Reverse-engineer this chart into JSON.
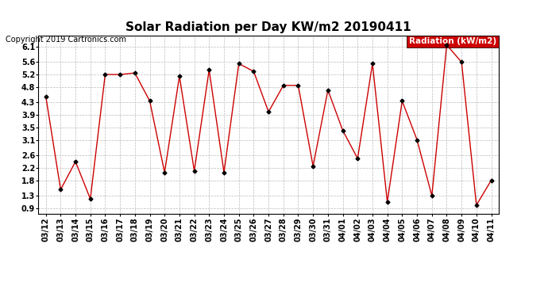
{
  "title": "Solar Radiation per Day KW/m2 20190411",
  "copyright": "Copyright 2019 Cartronics.com",
  "legend_label": "Radiation (kW/m2)",
  "dates": [
    "03/12",
    "03/13",
    "03/14",
    "03/15",
    "03/16",
    "03/17",
    "03/18",
    "03/19",
    "03/20",
    "03/21",
    "03/22",
    "03/23",
    "03/24",
    "03/25",
    "03/26",
    "03/27",
    "03/28",
    "03/29",
    "03/30",
    "03/31",
    "04/01",
    "04/02",
    "04/03",
    "04/04",
    "04/05",
    "04/06",
    "04/07",
    "04/08",
    "04/09",
    "04/10",
    "04/11"
  ],
  "values": [
    4.5,
    1.5,
    2.4,
    1.2,
    5.2,
    5.2,
    5.25,
    4.35,
    2.05,
    5.15,
    2.1,
    5.35,
    2.05,
    5.55,
    5.3,
    4.0,
    4.85,
    4.85,
    2.25,
    4.7,
    3.4,
    2.5,
    5.55,
    1.1,
    4.35,
    3.1,
    1.3,
    6.15,
    5.6,
    1.0,
    1.8
  ],
  "line_color": "#cc0000",
  "marker_color": "#000000",
  "grid_color": "#bbbbbb",
  "background_color": "#ffffff",
  "legend_bg": "#cc0000",
  "legend_text_color": "#ffffff",
  "ylim": [
    0.72,
    6.45
  ],
  "yticks": [
    0.9,
    1.3,
    1.8,
    2.2,
    2.6,
    3.1,
    3.5,
    3.9,
    4.3,
    4.8,
    5.2,
    5.6,
    6.1
  ],
  "title_fontsize": 11,
  "copyright_fontsize": 7,
  "tick_fontsize": 7,
  "legend_fontsize": 7.5
}
